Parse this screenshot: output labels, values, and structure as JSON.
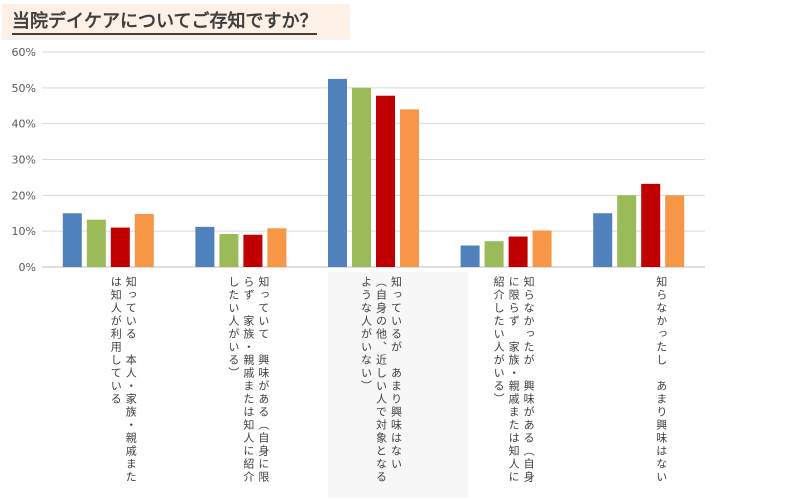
{
  "title": "当院デイケアについてご存知ですか？",
  "chart_data": {
    "type": "bar",
    "ylim": [
      0,
      60
    ],
    "yticks": [
      "0%",
      "10%",
      "20%",
      "30%",
      "40%",
      "50%",
      "60%"
    ],
    "categories": [
      "知っている　本人・家族・親戚または知人が利用している",
      "知っていて　興味がある（自身に限らず　家族・親戚または知人に紹介したい人がいる）",
      "知っているが　あまり興味はない（自身の他、近しい人で対象となるような人がいない）",
      "知らなかったが　興味がある（自身に限らず　家族・親戚または知人に紹介したい人がいる）",
      "知らなかったし　あまり興味はない"
    ],
    "series": [
      {
        "color": "#4f81bd",
        "values": [
          15,
          11.2,
          52.5,
          6,
          15
        ]
      },
      {
        "color": "#9bbb59",
        "values": [
          13.2,
          9.2,
          50,
          7.2,
          20
        ]
      },
      {
        "color": "#c00000",
        "values": [
          11,
          9,
          47.8,
          8.5,
          23.2
        ]
      },
      {
        "color": "#f79646",
        "values": [
          14.8,
          10.8,
          44,
          10.2,
          20
        ]
      }
    ]
  }
}
